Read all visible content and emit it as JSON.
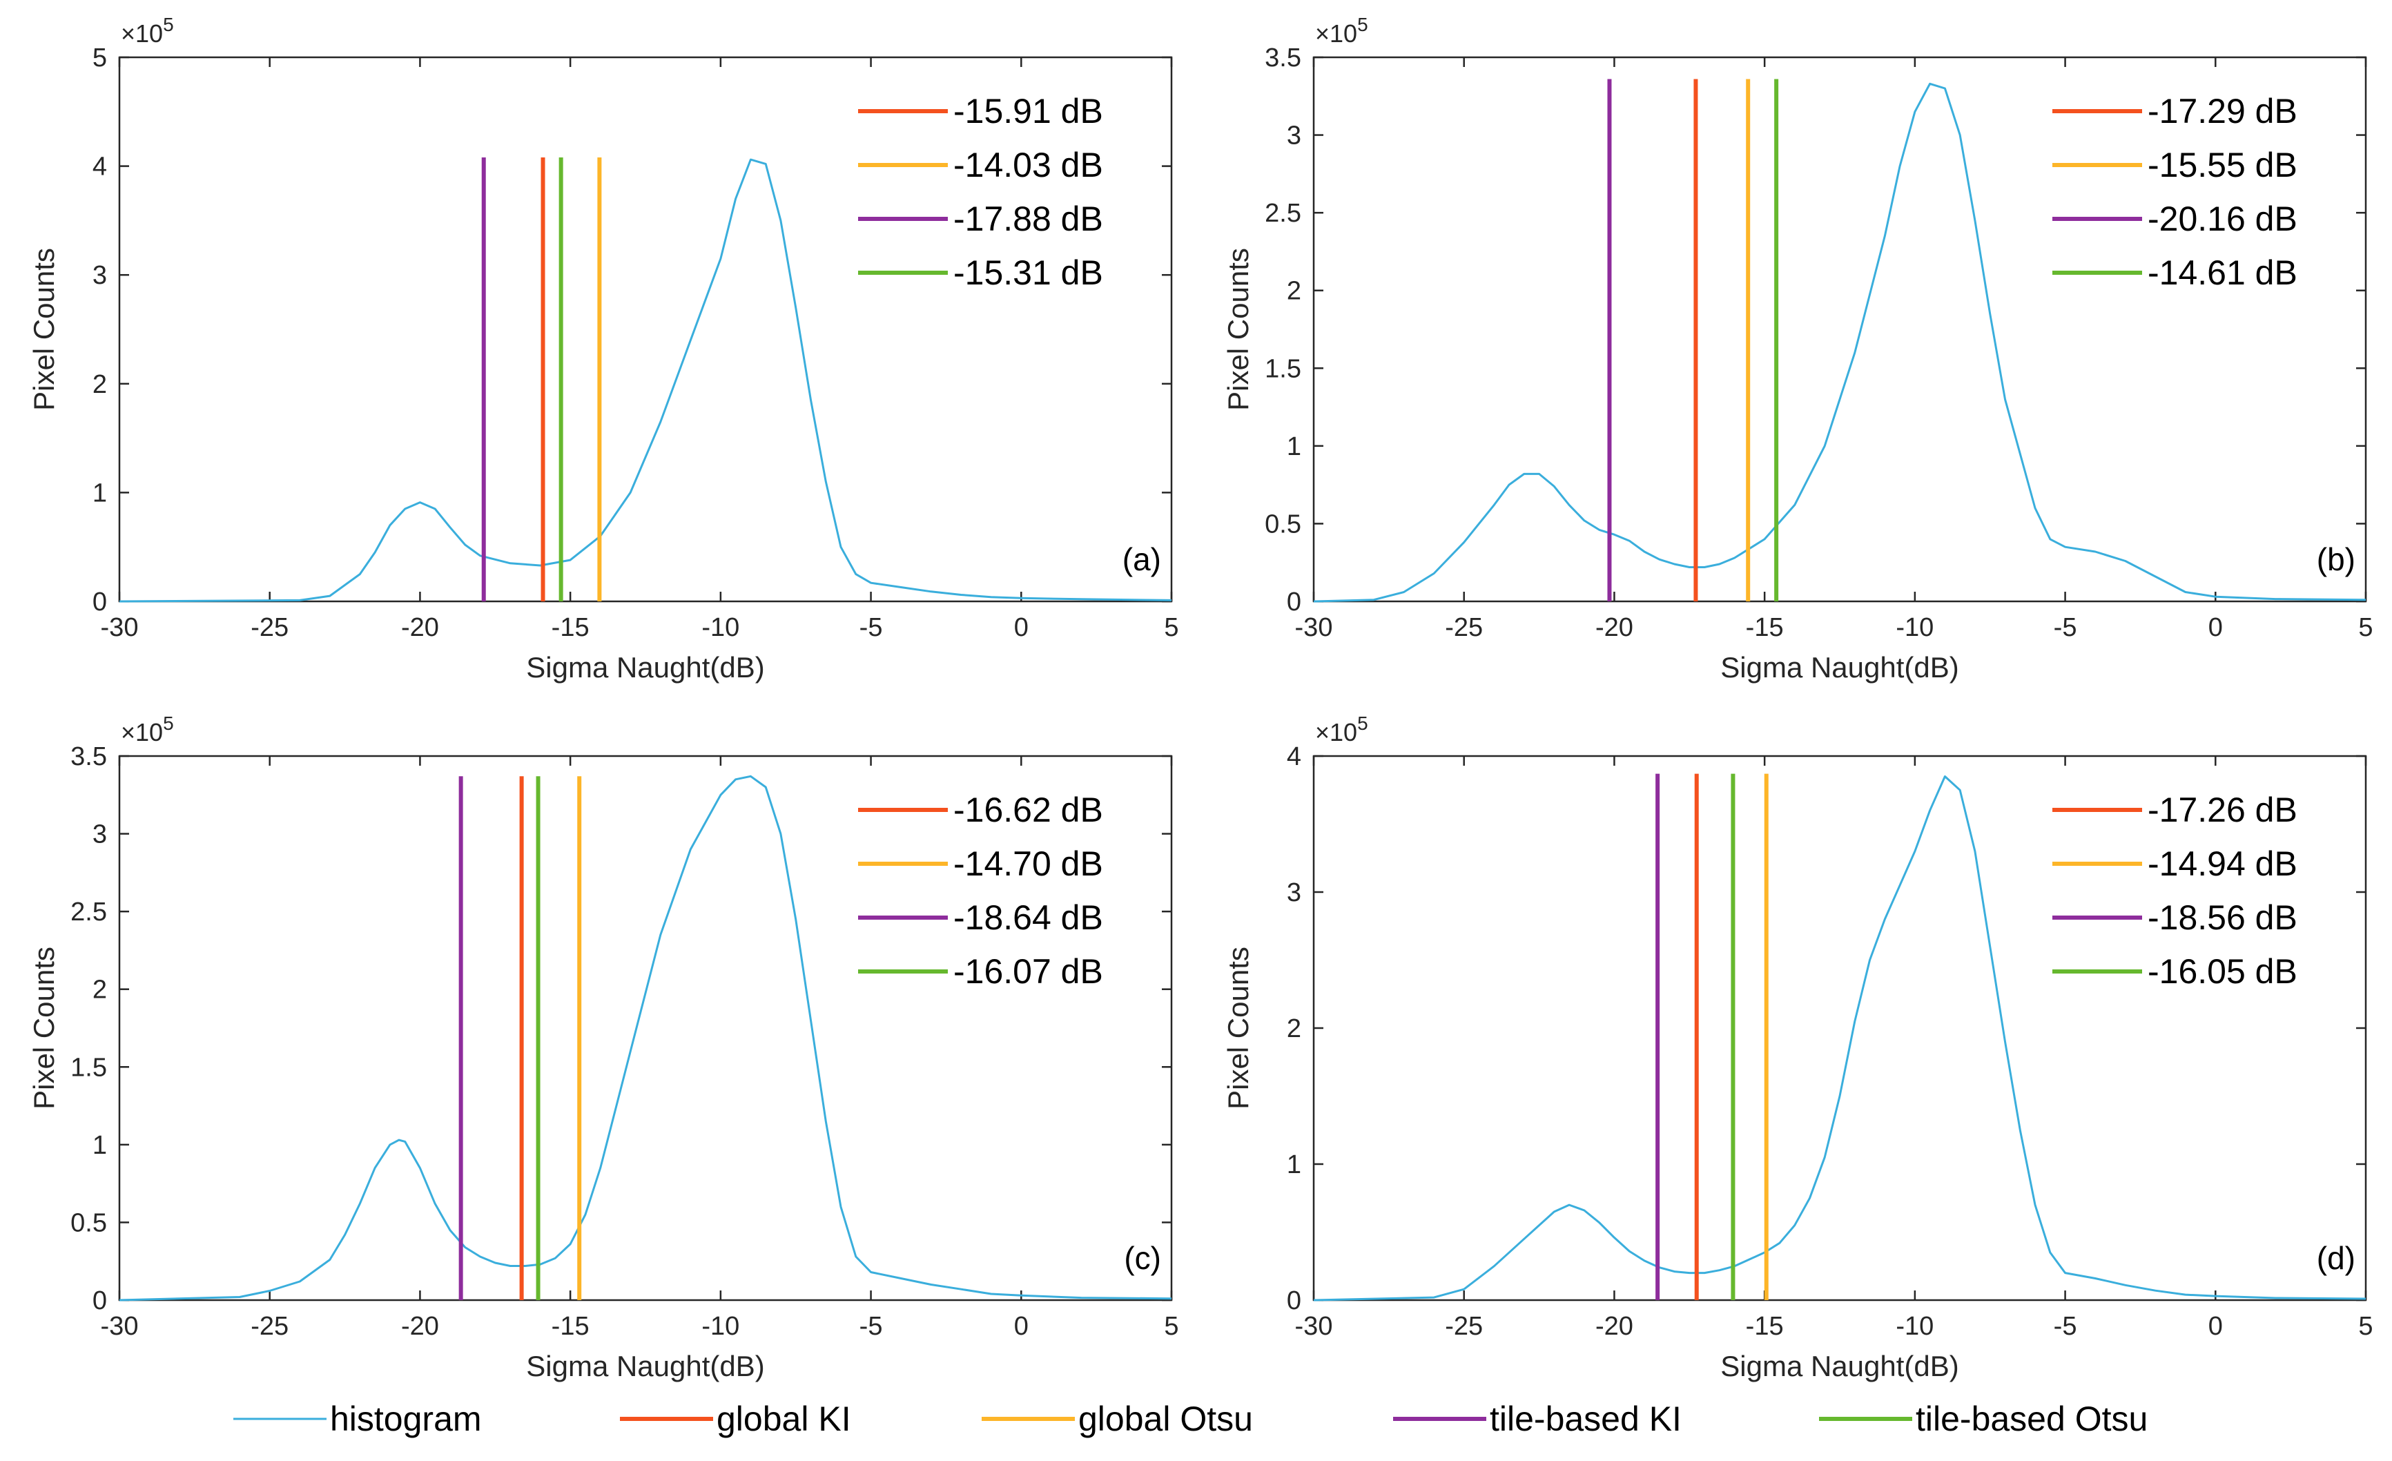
{
  "colors": {
    "histogram": "#3AAEDC",
    "global_KI": "#F4511E",
    "global_Otsu": "#FDB528",
    "tile_KI": "#8E2D9C",
    "tile_Otsu": "#66B82E",
    "axis": "#262626"
  },
  "bottom_legend": [
    {
      "key": "histogram",
      "label": "histogram"
    },
    {
      "key": "global_KI",
      "label": "global KI"
    },
    {
      "key": "global_Otsu",
      "label": "global Otsu"
    },
    {
      "key": "tile_KI",
      "label": "tile-based KI"
    },
    {
      "key": "tile_Otsu",
      "label": "tile-based Otsu"
    }
  ],
  "chart_data": [
    {
      "type": "line",
      "panel_label": "(a)",
      "xlabel": "Sigma Naught(dB)",
      "ylabel": "Pixel Counts",
      "y_exponent_label": "×10",
      "y_exponent": "5",
      "xlim": [
        -30,
        5
      ],
      "ylim": [
        0,
        5
      ],
      "x_ticks": [
        -30,
        -25,
        -20,
        -15,
        -10,
        -5,
        0,
        5
      ],
      "y_ticks": [
        0,
        1,
        2,
        3,
        4,
        5
      ],
      "y_tick_labels": [
        "0",
        "1",
        "2",
        "3",
        "4",
        "5"
      ],
      "threshold_height": 4.08,
      "thresholds": [
        {
          "key": "global_KI",
          "value": -15.91,
          "label": "-15.91 dB"
        },
        {
          "key": "global_Otsu",
          "value": -14.03,
          "label": "-14.03 dB"
        },
        {
          "key": "tile_KI",
          "value": -17.88,
          "label": "-17.88 dB"
        },
        {
          "key": "tile_Otsu",
          "value": -15.31,
          "label": "-15.31 dB"
        }
      ],
      "histogram": {
        "x": [
          -30,
          -24,
          -23,
          -22,
          -21.5,
          -21,
          -20.5,
          -20,
          -19.5,
          -19,
          -18.5,
          -18,
          -17,
          -16,
          -15,
          -14,
          -13,
          -12,
          -11,
          -10,
          -9.5,
          -9,
          -8.5,
          -8,
          -7.5,
          -7,
          -6.5,
          -6,
          -5.5,
          -5,
          -4,
          -3,
          -2,
          -1,
          0,
          2,
          5
        ],
        "y": [
          0,
          0.01,
          0.05,
          0.25,
          0.45,
          0.7,
          0.85,
          0.91,
          0.85,
          0.68,
          0.52,
          0.42,
          0.35,
          0.33,
          0.38,
          0.6,
          1.0,
          1.65,
          2.4,
          3.15,
          3.7,
          4.06,
          4.02,
          3.5,
          2.7,
          1.85,
          1.1,
          0.5,
          0.25,
          0.17,
          0.13,
          0.09,
          0.06,
          0.04,
          0.03,
          0.02,
          0.01
        ]
      }
    },
    {
      "type": "line",
      "panel_label": "(b)",
      "xlabel": "Sigma Naught(dB)",
      "ylabel": "Pixel Counts",
      "y_exponent_label": "×10",
      "y_exponent": "5",
      "xlim": [
        -30,
        5
      ],
      "ylim": [
        0,
        3.5
      ],
      "x_ticks": [
        -30,
        -25,
        -20,
        -15,
        -10,
        -5,
        0,
        5
      ],
      "y_ticks": [
        0,
        0.5,
        1,
        1.5,
        2,
        2.5,
        3,
        3.5
      ],
      "y_tick_labels": [
        "0",
        "0.5",
        "1",
        "1.5",
        "2",
        "2.5",
        "3",
        "3.5"
      ],
      "threshold_height": 3.36,
      "thresholds": [
        {
          "key": "global_KI",
          "value": -17.29,
          "label": "-17.29 dB"
        },
        {
          "key": "global_Otsu",
          "value": -15.55,
          "label": "-15.55 dB"
        },
        {
          "key": "tile_KI",
          "value": -20.16,
          "label": "-20.16 dB"
        },
        {
          "key": "tile_Otsu",
          "value": -14.61,
          "label": "-14.61 dB"
        }
      ],
      "histogram": {
        "x": [
          -30,
          -28,
          -27,
          -26,
          -25,
          -24,
          -23.5,
          -23,
          -22.5,
          -22,
          -21.5,
          -21,
          -20.5,
          -20,
          -19.5,
          -19,
          -18.5,
          -18,
          -17.5,
          -17,
          -16.5,
          -16,
          -15,
          -14,
          -13,
          -12,
          -11,
          -10.5,
          -10,
          -9.5,
          -9,
          -8.5,
          -8,
          -7.5,
          -7,
          -6,
          -5.5,
          -5,
          -4,
          -3,
          -2,
          -1,
          0,
          2,
          5
        ],
        "y": [
          0,
          0.01,
          0.06,
          0.18,
          0.38,
          0.62,
          0.75,
          0.82,
          0.82,
          0.74,
          0.62,
          0.52,
          0.46,
          0.43,
          0.39,
          0.32,
          0.27,
          0.24,
          0.22,
          0.22,
          0.24,
          0.28,
          0.4,
          0.62,
          1.0,
          1.6,
          2.35,
          2.8,
          3.15,
          3.33,
          3.3,
          3.0,
          2.45,
          1.85,
          1.3,
          0.6,
          0.4,
          0.35,
          0.32,
          0.26,
          0.16,
          0.06,
          0.03,
          0.015,
          0.01
        ]
      }
    },
    {
      "type": "line",
      "panel_label": "(c)",
      "xlabel": "Sigma Naught(dB)",
      "ylabel": "Pixel Counts",
      "y_exponent_label": "×10",
      "y_exponent": "5",
      "xlim": [
        -30,
        5
      ],
      "ylim": [
        0,
        3.5
      ],
      "x_ticks": [
        -30,
        -25,
        -20,
        -15,
        -10,
        -5,
        0,
        5
      ],
      "y_ticks": [
        0,
        0.5,
        1,
        1.5,
        2,
        2.5,
        3,
        3.5
      ],
      "y_tick_labels": [
        "0",
        "0.5",
        "1",
        "1.5",
        "2",
        "2.5",
        "3",
        "3.5"
      ],
      "threshold_height": 3.37,
      "thresholds": [
        {
          "key": "global_KI",
          "value": -16.62,
          "label": "-16.62 dB"
        },
        {
          "key": "global_Otsu",
          "value": -14.7,
          "label": "-14.70 dB"
        },
        {
          "key": "tile_KI",
          "value": -18.64,
          "label": "-18.64 dB"
        },
        {
          "key": "tile_Otsu",
          "value": -16.07,
          "label": "-16.07 dB"
        }
      ],
      "histogram": {
        "x": [
          -30,
          -26,
          -25,
          -24,
          -23,
          -22.5,
          -22,
          -21.5,
          -21,
          -20.7,
          -20.5,
          -20,
          -19.5,
          -19,
          -18.5,
          -18,
          -17.5,
          -17,
          -16.5,
          -16,
          -15.5,
          -15,
          -14.5,
          -14,
          -13,
          -12,
          -11,
          -10,
          -9.5,
          -9,
          -8.5,
          -8,
          -7.5,
          -7,
          -6.5,
          -6,
          -5.5,
          -5,
          -4,
          -3,
          -2,
          -1,
          0,
          2,
          5
        ],
        "y": [
          0,
          0.02,
          0.06,
          0.12,
          0.26,
          0.42,
          0.62,
          0.85,
          1.0,
          1.03,
          1.02,
          0.85,
          0.62,
          0.45,
          0.34,
          0.28,
          0.24,
          0.22,
          0.22,
          0.23,
          0.27,
          0.36,
          0.55,
          0.85,
          1.6,
          2.35,
          2.9,
          3.25,
          3.35,
          3.37,
          3.3,
          3.0,
          2.45,
          1.8,
          1.15,
          0.6,
          0.28,
          0.18,
          0.14,
          0.1,
          0.07,
          0.04,
          0.03,
          0.015,
          0.01
        ]
      }
    },
    {
      "type": "line",
      "panel_label": "(d)",
      "xlabel": "Sigma Naught(dB)",
      "ylabel": "Pixel Counts",
      "y_exponent_label": "×10",
      "y_exponent": "5",
      "xlim": [
        -30,
        5
      ],
      "ylim": [
        0,
        4
      ],
      "x_ticks": [
        -30,
        -25,
        -20,
        -15,
        -10,
        -5,
        0,
        5
      ],
      "y_ticks": [
        0,
        1,
        2,
        3,
        4
      ],
      "y_tick_labels": [
        "0",
        "1",
        "2",
        "3",
        "4"
      ],
      "threshold_height": 3.87,
      "thresholds": [
        {
          "key": "global_KI",
          "value": -17.26,
          "label": "-17.26 dB"
        },
        {
          "key": "global_Otsu",
          "value": -14.94,
          "label": "-14.94 dB"
        },
        {
          "key": "tile_KI",
          "value": -18.56,
          "label": "-18.56 dB"
        },
        {
          "key": "tile_Otsu",
          "value": -16.05,
          "label": "-16.05 dB"
        }
      ],
      "histogram": {
        "x": [
          -30,
          -26,
          -25,
          -24,
          -23,
          -22,
          -21.5,
          -21,
          -20.5,
          -20,
          -19.5,
          -19,
          -18.5,
          -18,
          -17.5,
          -17,
          -16.5,
          -16,
          -15.5,
          -15,
          -14.5,
          -14,
          -13.5,
          -13,
          -12.5,
          -12,
          -11.5,
          -11,
          -10.5,
          -10,
          -9.5,
          -9,
          -8.5,
          -8,
          -7.5,
          -7,
          -6.5,
          -6,
          -5.5,
          -5,
          -4,
          -3,
          -2,
          -1,
          0,
          2,
          5
        ],
        "y": [
          0,
          0.02,
          0.08,
          0.25,
          0.45,
          0.65,
          0.7,
          0.66,
          0.57,
          0.46,
          0.36,
          0.29,
          0.24,
          0.21,
          0.2,
          0.2,
          0.22,
          0.25,
          0.3,
          0.35,
          0.42,
          0.55,
          0.75,
          1.05,
          1.5,
          2.05,
          2.5,
          2.8,
          3.05,
          3.3,
          3.6,
          3.85,
          3.75,
          3.3,
          2.6,
          1.9,
          1.25,
          0.7,
          0.35,
          0.2,
          0.16,
          0.11,
          0.07,
          0.04,
          0.03,
          0.015,
          0.01
        ]
      }
    }
  ]
}
